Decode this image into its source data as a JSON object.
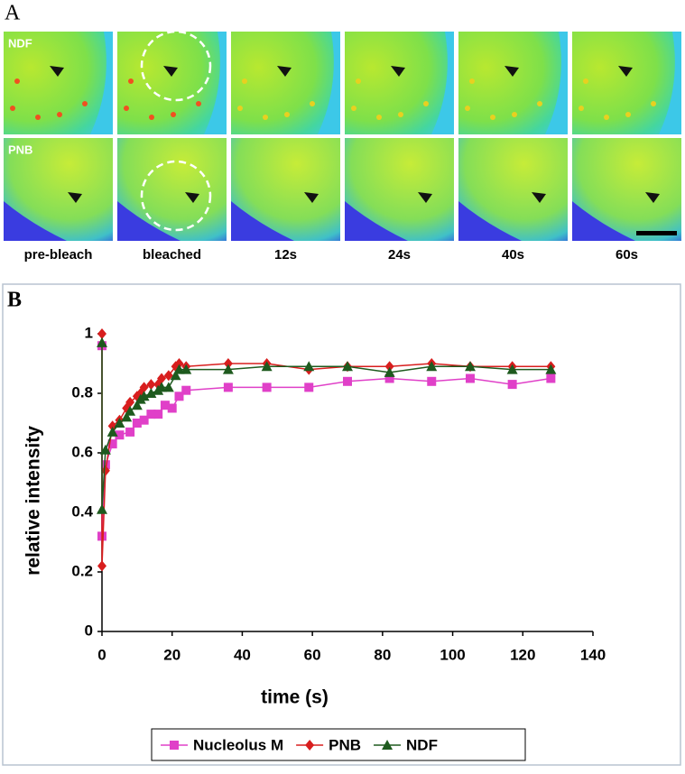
{
  "panel_a": {
    "label": "A",
    "rows": [
      "NDF",
      "PNB"
    ],
    "columns": [
      "pre-bleach",
      "bleached",
      "12s",
      "24s",
      "40s",
      "60s"
    ]
  },
  "panel_b_label": "B",
  "chart_data": {
    "type": "line",
    "xlabel": "time (s)",
    "ylabel": "relative intensity",
    "xlim": [
      0,
      140
    ],
    "xticks": [
      0,
      20,
      40,
      60,
      80,
      100,
      120,
      140
    ],
    "ylim": [
      0,
      1
    ],
    "yticks": [
      0,
      0.2,
      0.4,
      0.6,
      0.8,
      1
    ],
    "legend": "bottom",
    "series": [
      {
        "name": "Nucleolus M",
        "color": "#e040c8",
        "marker": "square",
        "x": [
          0,
          0,
          1,
          3,
          5,
          8,
          10,
          12,
          14,
          16,
          18,
          20,
          22,
          24,
          36,
          47,
          59,
          70,
          82,
          94,
          105,
          117,
          128
        ],
        "values": [
          0.96,
          0.32,
          0.56,
          0.63,
          0.66,
          0.67,
          0.7,
          0.71,
          0.73,
          0.73,
          0.76,
          0.75,
          0.79,
          0.81,
          0.82,
          0.82,
          0.82,
          0.84,
          0.85,
          0.84,
          0.85,
          0.83,
          0.85
        ]
      },
      {
        "name": "PNB",
        "color": "#d81e1e",
        "marker": "diamond",
        "x": [
          0,
          0,
          1,
          3,
          5,
          7,
          8,
          10,
          11,
          12,
          14,
          16,
          17,
          19,
          21,
          22,
          24,
          36,
          47,
          59,
          70,
          82,
          94,
          105,
          117,
          128
        ],
        "values": [
          1.0,
          0.22,
          0.54,
          0.69,
          0.71,
          0.75,
          0.77,
          0.79,
          0.8,
          0.82,
          0.83,
          0.83,
          0.85,
          0.86,
          0.89,
          0.9,
          0.89,
          0.9,
          0.9,
          0.88,
          0.89,
          0.89,
          0.9,
          0.89,
          0.89,
          0.89
        ]
      },
      {
        "name": "NDF",
        "color": "#1e5a1e",
        "marker": "triangle",
        "x": [
          0,
          0,
          1,
          3,
          5,
          7,
          8,
          10,
          11,
          12,
          14,
          16,
          17,
          19,
          21,
          22,
          24,
          36,
          47,
          59,
          70,
          82,
          94,
          105,
          117,
          128
        ],
        "values": [
          0.97,
          0.41,
          0.61,
          0.67,
          0.7,
          0.72,
          0.74,
          0.76,
          0.78,
          0.79,
          0.8,
          0.81,
          0.82,
          0.82,
          0.86,
          0.88,
          0.88,
          0.88,
          0.89,
          0.89,
          0.89,
          0.87,
          0.89,
          0.89,
          0.88,
          0.88
        ]
      }
    ]
  }
}
